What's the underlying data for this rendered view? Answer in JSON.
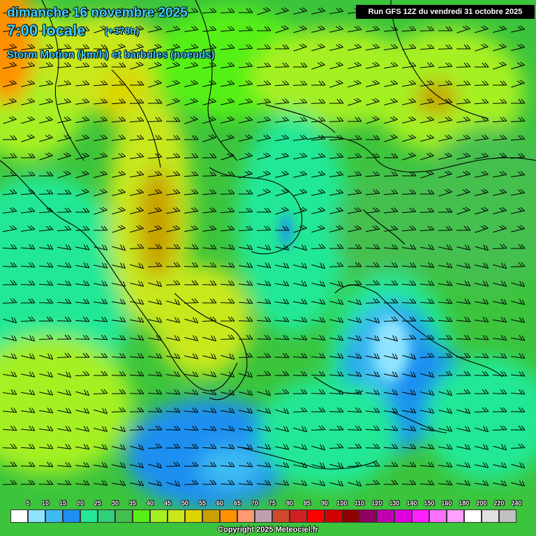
{
  "header": {
    "date": "dimanche 16 novembre 2025",
    "time": "7:00 locale",
    "lead": "(+378h)",
    "parameter": "Storm Motion (km/h) et barbules (noeuds)"
  },
  "run_label": "Run GFS 12Z du vendredi 31 octobre 2025",
  "copyright": "Copyright 2025 Meteociel.fr",
  "legend": {
    "labels": [
      "5",
      "10",
      "15",
      "20",
      "25",
      "30",
      "35",
      "40",
      "45",
      "50",
      "55",
      "60",
      "65",
      "70",
      "75",
      "80",
      "85",
      "90",
      "100",
      "110",
      "120",
      "130",
      "140",
      "150",
      "160",
      "180",
      "200",
      "220",
      "240"
    ],
    "colors": [
      "#ffffff",
      "#8fe3ff",
      "#3ebcf2",
      "#1f8ff0",
      "#22e895",
      "#30d07a",
      "#44c050",
      "#55f015",
      "#a5f020",
      "#c8e81a",
      "#dcd400",
      "#c8a000",
      "#ff9000",
      "#ff9a70",
      "#c0a0b0",
      "#d04a30",
      "#d02020",
      "#ff0000",
      "#d00000",
      "#900000",
      "#900060",
      "#c000b0",
      "#e000e0",
      "#ff20ff",
      "#ff70ff",
      "#ffa0ff",
      "#ffffff",
      "#e0e0e0",
      "#c0c0c0"
    ]
  },
  "colors": {
    "title_text": "#3fd0ff",
    "run_bg": "#000000"
  }
}
